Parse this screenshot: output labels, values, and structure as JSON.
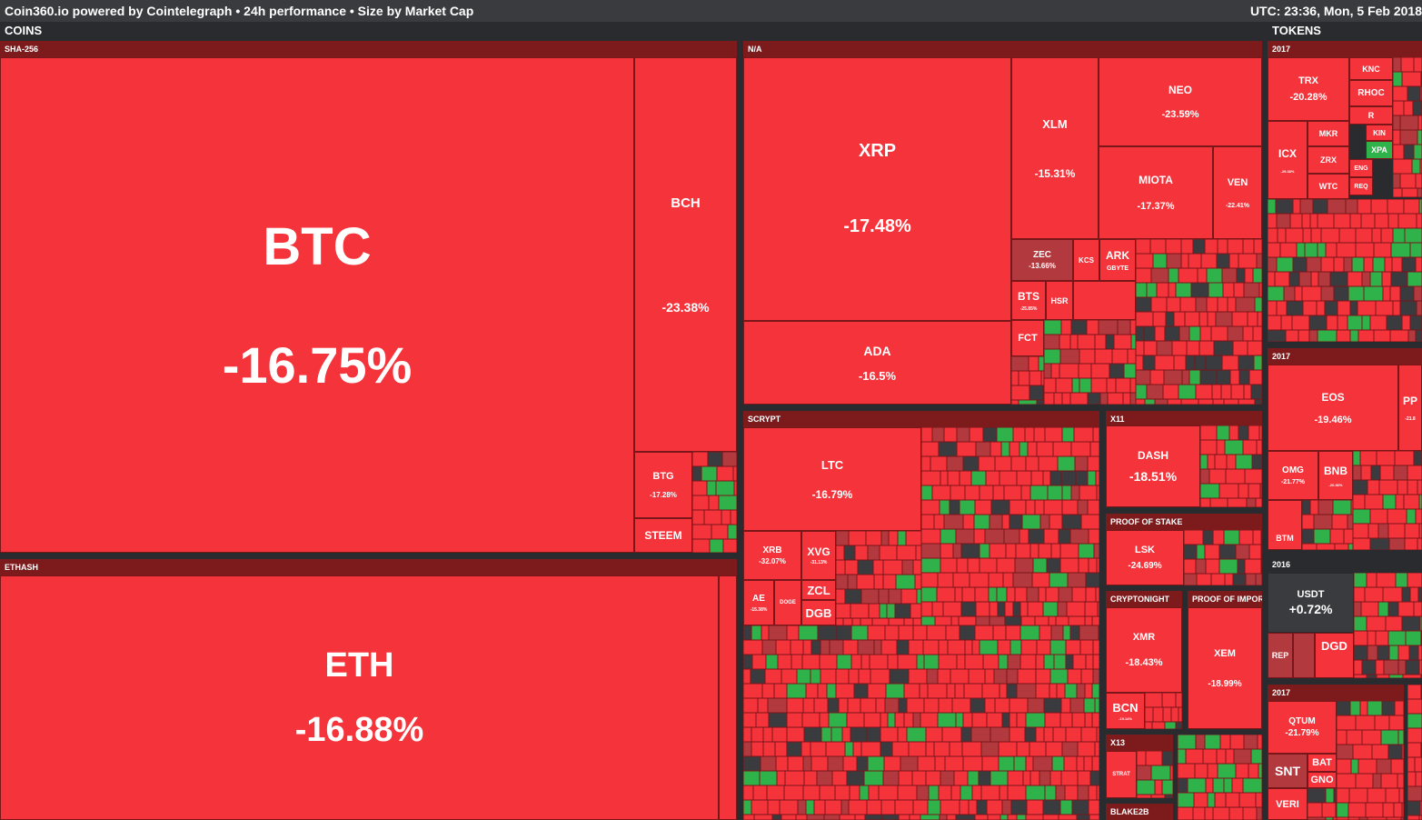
{
  "header": {
    "title": "Coin360.io powered by Cointelegraph • 24h performance • Size by Market Cap",
    "datetime": "UTC: 23:36, Mon, 5 Feb 2018"
  },
  "sections": {
    "coins": "COINS",
    "tokens": "TOKENS"
  },
  "groups": {
    "sha256": "SHA-256",
    "ethash": "ETHASH",
    "na": "N/A",
    "scrypt": "SCRYPT",
    "x11": "X11",
    "pos": "PROOF OF STAKE",
    "cryptonight": "CRYPTONIGHT",
    "proof_of_imp": "PROOF OF IMPORTANCE",
    "x13": "X13",
    "blake2b": "BLAKE2B",
    "tok_2017a": "2017",
    "tok_2017b": "2017",
    "tok_2016": "2016",
    "tok_2017c": "2017"
  },
  "colors": {
    "loss": "#f5333b",
    "mild_loss": "#b23a3e",
    "gain": "#2fb24a",
    "neutral": "#3a3b3f",
    "group_header": "#7d1a1c",
    "background": "#2a2b2e"
  },
  "coins": {
    "btc": {
      "sym": "BTC",
      "pct": "-16.75%"
    },
    "eth": {
      "sym": "ETH",
      "pct": "-16.88%"
    },
    "bch": {
      "sym": "BCH",
      "pct": "-23.38%"
    },
    "btg": {
      "sym": "BTG",
      "pct": "-17.28%"
    },
    "steem": {
      "sym": "STEEM"
    },
    "xrp": {
      "sym": "XRP",
      "pct": "-17.48%"
    },
    "ada": {
      "sym": "ADA",
      "pct": "-16.5%"
    },
    "xlm": {
      "sym": "XLM",
      "pct": "-15.31%"
    },
    "neo": {
      "sym": "NEO",
      "pct": "-23.59%"
    },
    "miota": {
      "sym": "MIOTA",
      "pct": "-17.37%"
    },
    "ven": {
      "sym": "VEN",
      "pct": "-22.41%"
    },
    "zec": {
      "sym": "ZEC",
      "pct": "-13.66%"
    },
    "kcs": {
      "sym": "KCS"
    },
    "ark": {
      "sym": "ARK"
    },
    "gbyte": {
      "sym": "GBYTE"
    },
    "bts": {
      "sym": "BTS",
      "pct": "-25.85%"
    },
    "hsr": {
      "sym": "HSR"
    },
    "fct": {
      "sym": "FCT"
    },
    "ltc": {
      "sym": "LTC",
      "pct": "-16.79%"
    },
    "xrb": {
      "sym": "XRB",
      "pct": "-32.07%"
    },
    "xvg": {
      "sym": "XVG",
      "pct": "-31.13%"
    },
    "zcl": {
      "sym": "ZCL"
    },
    "dgb": {
      "sym": "DGB"
    },
    "ae": {
      "sym": "AE",
      "pct": "-15.38%"
    },
    "doge": {
      "sym": "DOGE"
    },
    "dash": {
      "sym": "DASH",
      "pct": "-18.51%"
    },
    "lsk": {
      "sym": "LSK",
      "pct": "-24.69%"
    },
    "xmr": {
      "sym": "XMR",
      "pct": "-18.43%"
    },
    "bcn": {
      "sym": "BCN",
      "pct": "-19.14%"
    },
    "xem": {
      "sym": "XEM",
      "pct": "-18.99%"
    },
    "strat": {
      "sym": "STRAT"
    }
  },
  "tokens": {
    "trx": {
      "sym": "TRX",
      "pct": "-20.28%"
    },
    "knc": {
      "sym": "KNC"
    },
    "rhoc": {
      "sym": "RHOC"
    },
    "r": {
      "sym": "R"
    },
    "icx": {
      "sym": "ICX",
      "pct": "-29.38%"
    },
    "mkr": {
      "sym": "MKR"
    },
    "zrx": {
      "sym": "ZRX"
    },
    "wtc": {
      "sym": "WTC"
    },
    "kin": {
      "sym": "KIN"
    },
    "xpa": {
      "sym": "XPA"
    },
    "eng": {
      "sym": "ENG"
    },
    "req": {
      "sym": "REQ"
    },
    "eos": {
      "sym": "EOS",
      "pct": "-19.46%"
    },
    "ppt": {
      "sym": "PP",
      "pct": "-21.8"
    },
    "omg": {
      "sym": "OMG",
      "pct": "-21.77%"
    },
    "bnb": {
      "sym": "BNB",
      "pct": "-20.36%"
    },
    "btm": {
      "sym": "BTM"
    },
    "usdt": {
      "sym": "USDT",
      "pct": "+0.72%"
    },
    "rep": {
      "sym": "REP"
    },
    "dgd": {
      "sym": "DGD"
    },
    "qtum": {
      "sym": "QTUM",
      "pct": "-21.79%"
    },
    "snt": {
      "sym": "SNT"
    },
    "bat": {
      "sym": "BAT"
    },
    "gno": {
      "sym": "GNO"
    },
    "veri": {
      "sym": "VERI"
    }
  }
}
